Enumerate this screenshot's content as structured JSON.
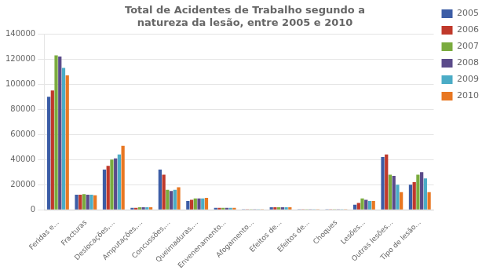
{
  "chart_data": {
    "type": "bar",
    "title": "Total de Acidentes de Trabalho segundo a\nnatureza da lesão, entre 2005 e 2010",
    "categories": [
      "Feridas e...",
      "Fracturas",
      "Deslocações,...",
      "Amputações,...",
      "Concussões,...",
      "Queimaduras,...",
      "Envenenamento...",
      "Afogamento...",
      "Efeitos de...",
      "Efeitos de...",
      "Choques",
      "Lesões...",
      "Outras lesões...",
      "Tipo de lesão..."
    ],
    "series": [
      {
        "name": "2005",
        "color": "#3c5da6",
        "values": [
          90000,
          12000,
          32000,
          1500,
          32000,
          7000,
          1500,
          500,
          2000,
          500,
          500,
          4000,
          42000,
          20000
        ]
      },
      {
        "name": "2006",
        "color": "#c0392b",
        "values": [
          95000,
          12000,
          35000,
          1500,
          28000,
          8000,
          1500,
          500,
          2000,
          500,
          500,
          5500,
          44000,
          22000
        ]
      },
      {
        "name": "2007",
        "color": "#7aab3e",
        "values": [
          123000,
          12500,
          40000,
          2000,
          16000,
          9000,
          1500,
          500,
          2000,
          500,
          500,
          9000,
          28000,
          28000
        ]
      },
      {
        "name": "2008",
        "color": "#5b4b8a",
        "values": [
          122000,
          12000,
          41000,
          2000,
          15000,
          9000,
          1500,
          500,
          2000,
          500,
          500,
          8000,
          27000,
          30000
        ]
      },
      {
        "name": "2009",
        "color": "#4bacc6",
        "values": [
          113000,
          12000,
          44000,
          2000,
          16000,
          9000,
          1500,
          500,
          2000,
          500,
          500,
          7000,
          20000,
          25000
        ]
      },
      {
        "name": "2010",
        "color": "#e87722",
        "values": [
          107000,
          11500,
          51000,
          2000,
          18000,
          9500,
          1500,
          500,
          2000,
          500,
          500,
          7000,
          14000,
          14000
        ]
      }
    ],
    "ylim": [
      0,
      140000
    ],
    "yticks": [
      0,
      20000,
      40000,
      60000,
      80000,
      100000,
      120000,
      140000
    ],
    "grid": true,
    "legend": "upper right"
  }
}
